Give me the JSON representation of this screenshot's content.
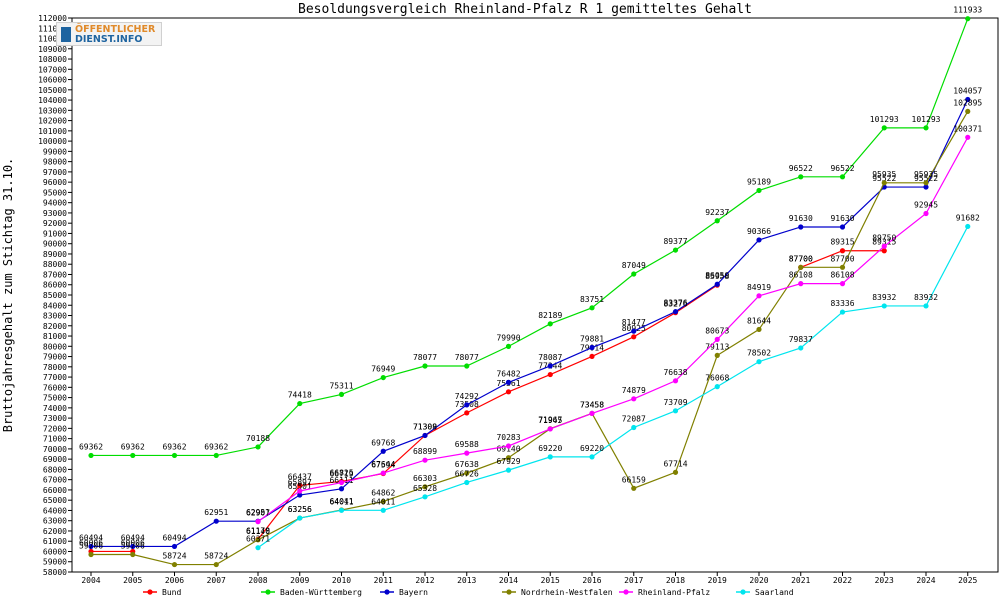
{
  "logo": {
    "line1": "ÖFFENTLICHER",
    "line2": "DIENST.INFO"
  },
  "chart_data": {
    "type": "line",
    "title": "Besoldungsvergleich Rheinland-Pfalz R 1 gemitteltes Gehalt",
    "xlabel": "",
    "ylabel": "Bruttojahresgehalt zum Stichtag 31.10.",
    "ylim": [
      58000,
      112000
    ],
    "ytick_step": 1000,
    "grid": false,
    "legend_position": "bottom",
    "x": [
      "2004",
      "2005",
      "2006",
      "2007",
      "2008",
      "2009",
      "2010",
      "2011",
      "2012",
      "2013",
      "2014",
      "2015",
      "2016",
      "2017",
      "2018",
      "2019",
      "2020",
      "2021",
      "2022",
      "2023",
      "2024",
      "2025"
    ],
    "series": [
      {
        "name": "Bund",
        "color": "#ff0000",
        "values": [
          60006,
          60006,
          null,
          null,
          61178,
          66437,
          66825,
          67594,
          71308,
          73508,
          75561,
          77244,
          79014,
          80925,
          83276,
          85958,
          null,
          87700,
          89315,
          89315,
          null,
          null
        ]
      },
      {
        "name": "Baden-Württemberg",
        "color": "#00dd00",
        "values": [
          69362,
          69362,
          69362,
          69362,
          70188,
          74418,
          75311,
          76949,
          78077,
          78077,
          79990,
          82189,
          83751,
          87049,
          89377,
          92237,
          95189,
          96522,
          96522,
          101293,
          101293,
          111933
        ]
      },
      {
        "name": "Bayern",
        "color": "#0000cc",
        "values": [
          60494,
          60494,
          60494,
          62951,
          62951,
          65501,
          66111,
          69768,
          71309,
          74292,
          76482,
          78087,
          79881,
          81477,
          83376,
          86050,
          90366,
          91630,
          91630,
          95522,
          95522,
          104057
        ]
      },
      {
        "name": "Nordrhein-Westfalen",
        "color": "#808000",
        "values": [
          59706,
          59706,
          58724,
          58724,
          61140,
          63256,
          64041,
          64862,
          66303,
          67638,
          69140,
          71967,
          73458,
          66159,
          67714,
          79113,
          81644,
          87700,
          87700,
          95935,
          95935,
          102895
        ]
      },
      {
        "name": "Rheinland-Pfalz",
        "color": "#ff00ff",
        "values": [
          null,
          null,
          null,
          null,
          62907,
          65897,
          66719,
          67644,
          68899,
          69588,
          70283,
          71945,
          73458,
          74879,
          76638,
          80673,
          84919,
          86108,
          86108,
          89750,
          92945,
          100371
        ]
      },
      {
        "name": "Saarland",
        "color": "#00e5ee",
        "values": [
          null,
          null,
          null,
          null,
          60371,
          63256,
          64011,
          64011,
          65328,
          66726,
          67929,
          69220,
          69220,
          72087,
          73709,
          76068,
          78502,
          79837,
          83336,
          83932,
          83932,
          91682
        ]
      }
    ]
  }
}
